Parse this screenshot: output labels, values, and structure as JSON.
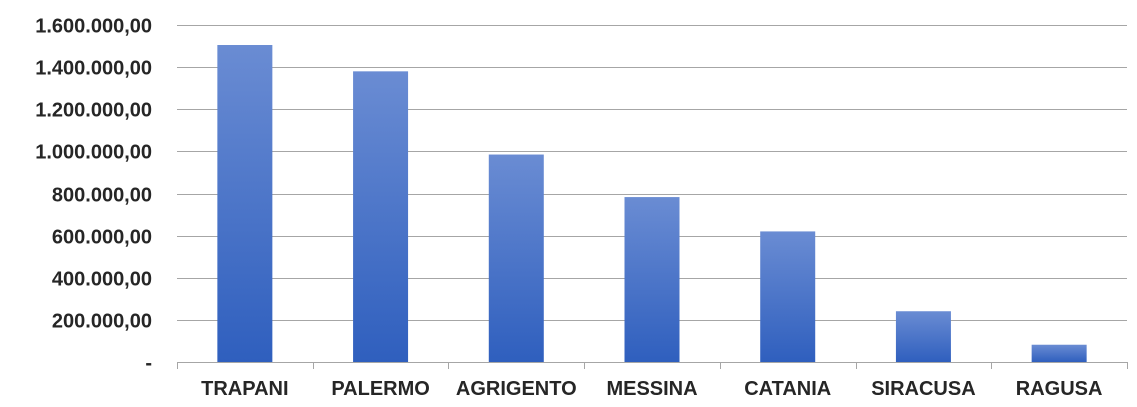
{
  "chart_data": {
    "type": "bar",
    "categories": [
      "TRAPANI",
      "PALERMO",
      "AGRIGENTO",
      "MESSINA",
      "CATANIA",
      "SIRACUSA",
      "RAGUSA"
    ],
    "values": [
      1505000,
      1380000,
      985000,
      783000,
      620000,
      241000,
      82000
    ],
    "y_tick_values": [
      0,
      200000,
      400000,
      600000,
      800000,
      1000000,
      1200000,
      1400000,
      1600000
    ],
    "y_tick_labels": [
      "-",
      "200.000,00",
      "400.000,00",
      "600.000,00",
      "800.000,00",
      "1.000.000,00",
      "1.200.000,00",
      "1.400.000,00",
      "1.600.000,00"
    ],
    "ylim": [
      0,
      1600000
    ],
    "grid": true,
    "legend": "none",
    "colors": {
      "bar_top": "#6A8CD3",
      "bar_bottom": "#2F5FBE",
      "grid": "#A6A6A6"
    }
  }
}
